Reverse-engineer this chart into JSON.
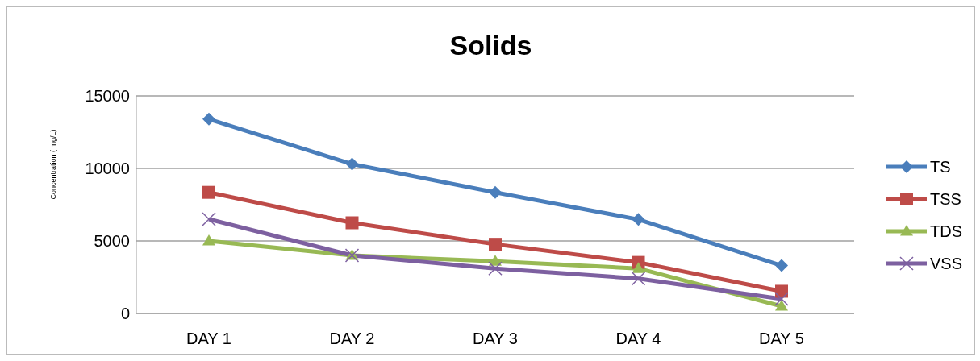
{
  "chart_data": {
    "type": "line",
    "title": "Solids",
    "ylabel": "Concentration ( mg/L)",
    "categories": [
      "DAY 1",
      "DAY 2",
      "DAY 3",
      "DAY 4",
      "DAY 5"
    ],
    "series": [
      {
        "name": "TS",
        "color": "#4a7ebb",
        "marker": "diamond",
        "values": [
          13400,
          10300,
          8350,
          6480,
          3300
        ]
      },
      {
        "name": "TSS",
        "color": "#be4b48",
        "marker": "square",
        "values": [
          8350,
          6250,
          4770,
          3520,
          1530
        ]
      },
      {
        "name": "TDS",
        "color": "#98b954",
        "marker": "triangle",
        "values": [
          5000,
          4000,
          3600,
          3100,
          500
        ]
      },
      {
        "name": "VSS",
        "color": "#7d60a0",
        "marker": "cross",
        "values": [
          6500,
          4000,
          3100,
          2400,
          1000
        ]
      }
    ],
    "ylim": [
      0,
      15000
    ],
    "yticks": [
      0,
      5000,
      10000,
      15000
    ],
    "grid": "y",
    "legend": "right"
  }
}
